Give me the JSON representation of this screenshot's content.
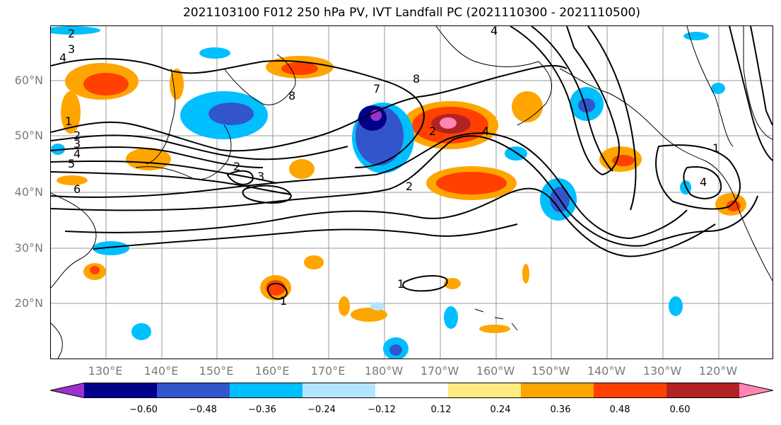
{
  "title": "2021103100 F012 250 hPa PV, IVT Landfall PC (2021110300 - 2021110500)",
  "lat_labels": [
    "60°N",
    "50°N",
    "40°N",
    "30°N",
    "20°N"
  ],
  "lon_labels": [
    "130°E",
    "140°E",
    "150°E",
    "160°E",
    "170°E",
    "180°W",
    "170°W",
    "160°W",
    "150°W",
    "140°W",
    "130°W",
    "120°W"
  ],
  "colorbar": {
    "colors": [
      "#9933cc",
      "#00008b",
      "#3355cc",
      "#00bfff",
      "#b3e5ff",
      "#ffffff",
      "#ffeb7f",
      "#ffa500",
      "#ff4000",
      "#b22222",
      "#ff85b3"
    ],
    "tick_labels": [
      "−0.60",
      "−0.48",
      "−0.36",
      "−0.24",
      "−0.12",
      "0.12",
      "0.24",
      "0.36",
      "0.48",
      "0.60"
    ]
  },
  "contour_labels": [
    "2",
    "3",
    "4",
    "2",
    "3",
    "4",
    "5",
    "6",
    "2",
    "3",
    "7",
    "8",
    "8",
    "2",
    "4",
    "2",
    "4",
    "1",
    "4",
    "1",
    "1",
    "1"
  ]
}
